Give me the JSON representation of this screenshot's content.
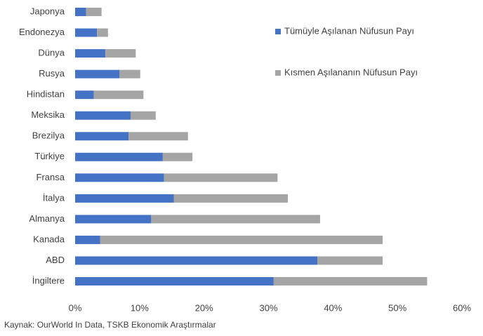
{
  "chart_data": {
    "type": "stacked_bar_horizontal",
    "categories": [
      "Japonya",
      "Endonezya",
      "Dünya",
      "Rusya",
      "Hindistan",
      "Meksika",
      "Brezilya",
      "Türkiye",
      "Fransa",
      "İtalya",
      "Almanya",
      "Kanada",
      "ABD",
      "İngiltere"
    ],
    "series": [
      {
        "name": "Tümüyle Aşılanan Nüfusun Payı",
        "color": "#4472c4",
        "values": [
          1.7,
          3.4,
          4.7,
          6.9,
          2.9,
          8.6,
          8.3,
          13.6,
          13.8,
          15.3,
          11.8,
          3.9,
          37.6,
          30.8
        ]
      },
      {
        "name": "Kısmen Aşılananın Nüfusun Payı",
        "color": "#a5a5a5",
        "values": [
          2.4,
          1.7,
          4.7,
          3.2,
          7.7,
          3.9,
          9.2,
          4.6,
          17.6,
          17.7,
          26.2,
          43.8,
          10.1,
          23.8
        ]
      }
    ],
    "xlim": [
      0,
      60
    ],
    "xticks": [
      {
        "value": 0,
        "label": "0%"
      },
      {
        "value": 10,
        "label": "10%"
      },
      {
        "value": 20,
        "label": "20%"
      },
      {
        "value": 30,
        "label": "30%"
      },
      {
        "value": 40,
        "label": "40%"
      },
      {
        "value": 50,
        "label": "50%"
      },
      {
        "value": 60,
        "label": "60%"
      }
    ],
    "grid": false,
    "legend": "right",
    "source": "Kaynak: OurWorld In Data, TSKB Ekonomik Araştırmalar"
  }
}
